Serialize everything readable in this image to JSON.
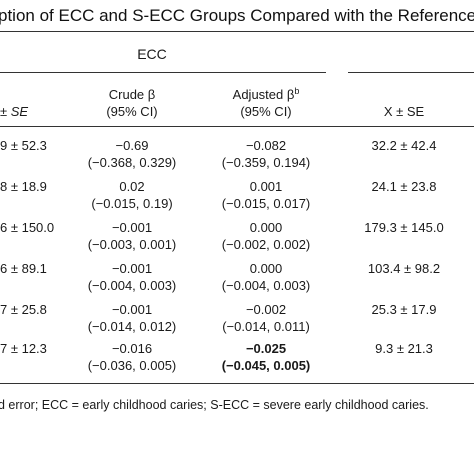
{
  "title": "ption of ECC and S-ECC Groups Compared with the Reference",
  "header": {
    "group_label": "ECC",
    "first_col": "± SE",
    "crude_label": "Crude β",
    "crude_ci": "(95% CI)",
    "adjusted_label": "Adjusted β",
    "adjusted_sup": "b",
    "adjusted_ci": "(95% CI)",
    "ref_col": "X ± SE"
  },
  "rows": [
    {
      "mean": "9 ± 52.3",
      "crude": "−0.69",
      "crude_ci": "(−0.368, 0.329)",
      "adj": "−0.082",
      "adj_ci": "(−0.359, 0.194)",
      "ref": "32.2 ± 42.4"
    },
    {
      "mean": "8 ± 18.9",
      "crude": "0.02",
      "crude_ci": "(−0.015, 0.19)",
      "adj": "0.001",
      "adj_ci": "(−0.015, 0.017)",
      "ref": "24.1 ± 23.8"
    },
    {
      "mean": "6 ± 150.0",
      "crude": "−0.001",
      "crude_ci": "(−0.003, 0.001)",
      "adj": "0.000",
      "adj_ci": "(−0.002, 0.002)",
      "ref": "179.3 ± 145.0"
    },
    {
      "mean": "6 ± 89.1",
      "crude": "−0.001",
      "crude_ci": "(−0.004, 0.003)",
      "adj": "0.000",
      "adj_ci": "(−0.004, 0.003)",
      "ref": "103.4 ± 98.2"
    },
    {
      "mean": "7 ± 25.8",
      "crude": "−0.001",
      "crude_ci": "(−0.014, 0.012)",
      "adj": "−0.002",
      "adj_ci": "(−0.014, 0.011)",
      "ref": "25.3 ± 17.9"
    },
    {
      "mean": "7 ± 12.3",
      "crude": "−0.016",
      "crude_ci": "(−0.036, 0.005)",
      "adj": "−0.025",
      "adj_ci": "(−0.045, 0.005)",
      "ref": "9.3 ± 21.3"
    }
  ],
  "footnote": "d error; ECC = early childhood caries; S-ECC = severe early childhood caries."
}
